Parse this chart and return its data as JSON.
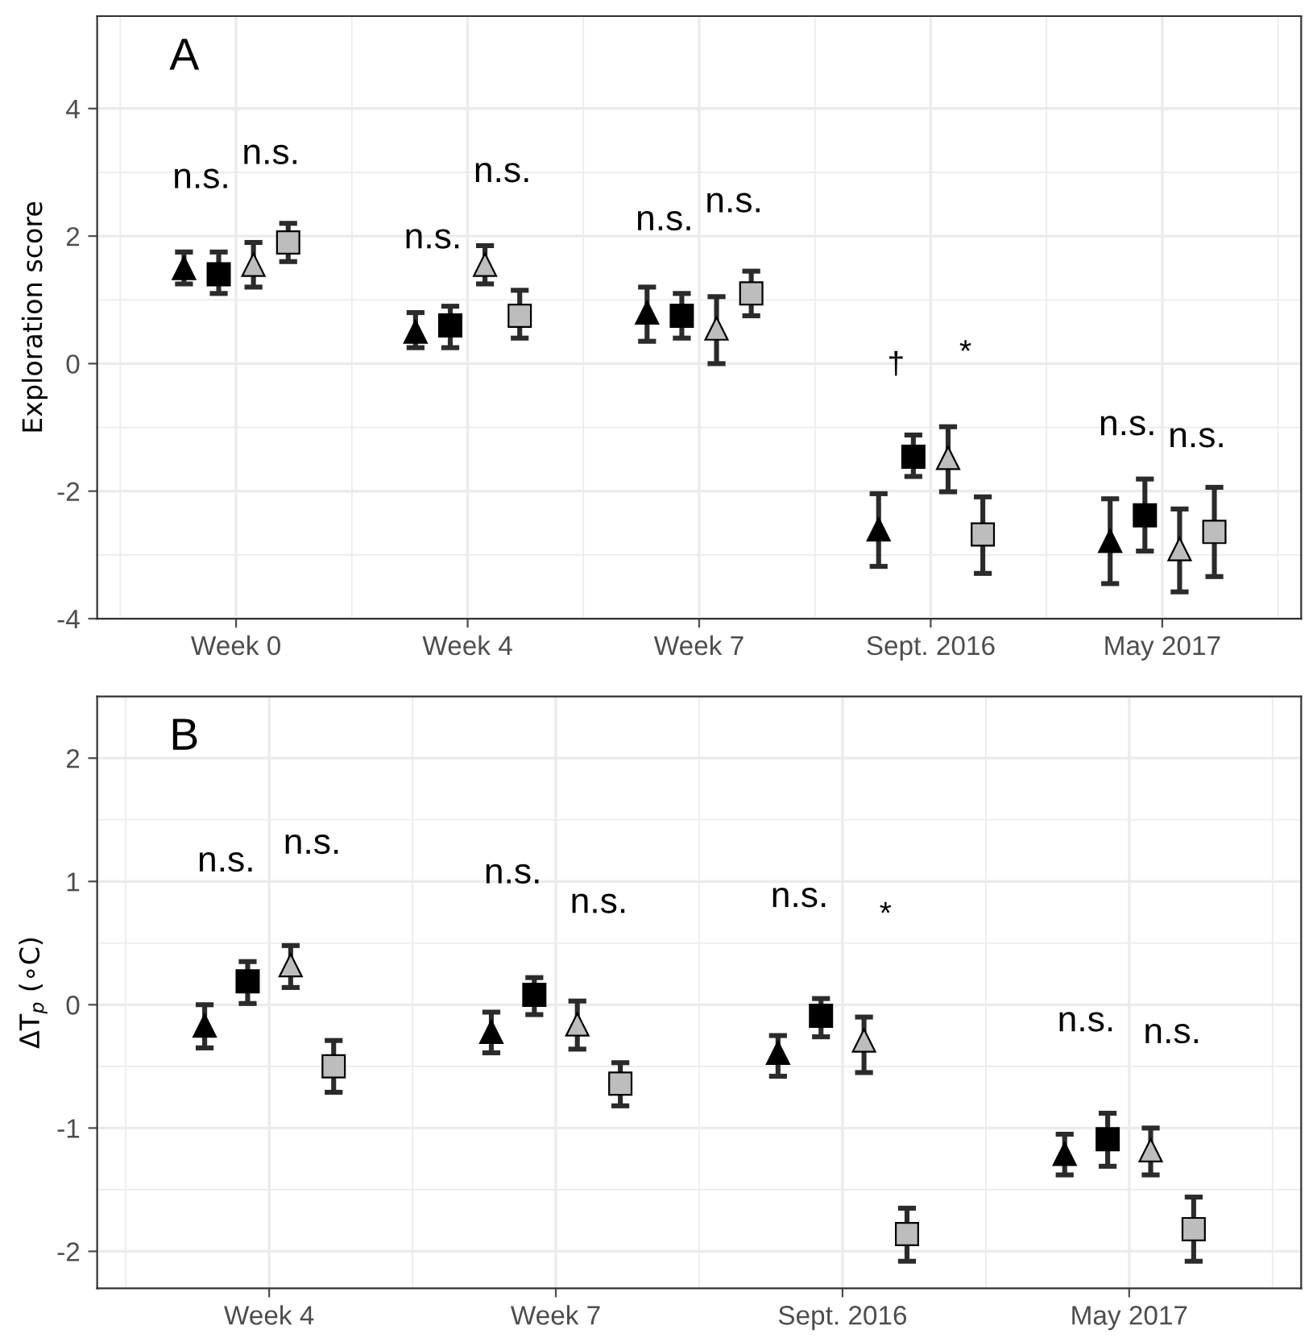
{
  "chart_data": [
    {
      "type": "scatter",
      "title": "A",
      "ylabel": "Exploration score",
      "categories": [
        "Week 0",
        "Week 4",
        "Week 7",
        "Sept. 2016",
        "May 2017"
      ],
      "ylim": [
        -4,
        5.45
      ],
      "yticks": [
        {
          "value": -4,
          "label": "-4"
        },
        {
          "value": -2,
          "label": "-2"
        },
        0,
        2,
        4
      ],
      "grid": true,
      "legend": false,
      "series": [
        {
          "color": "#000000",
          "marker": "triangle",
          "values": [
            1.5,
            0.5,
            0.8,
            -2.6,
            -2.78
          ],
          "errors": [
            [
              1.25,
              1.75
            ],
            [
              0.25,
              0.8
            ],
            [
              0.35,
              1.2
            ],
            [
              -3.18,
              -2.04
            ],
            [
              -3.45,
              -2.12
            ]
          ]
        },
        {
          "color": "#000000",
          "marker": "square",
          "values": [
            1.4,
            0.6,
            0.75,
            -1.46,
            -2.38
          ],
          "errors": [
            [
              1.1,
              1.75
            ],
            [
              0.25,
              0.9
            ],
            [
              0.4,
              1.1
            ],
            [
              -1.77,
              -1.12
            ],
            [
              -2.94,
              -1.81
            ]
          ]
        },
        {
          "color": "#bdbdbd",
          "marker": "triangle",
          "values": [
            1.55,
            1.55,
            0.55,
            -1.48,
            -2.91
          ],
          "errors": [
            [
              1.2,
              1.9
            ],
            [
              1.25,
              1.85
            ],
            [
              0,
              1.05
            ],
            [
              -2.01,
              -0.99
            ],
            [
              -3.58,
              -2.28
            ]
          ]
        },
        {
          "color": "#bdbdbd",
          "marker": "square",
          "values": [
            1.9,
            0.75,
            1.1,
            -2.68,
            -2.64
          ],
          "errors": [
            [
              1.6,
              2.2
            ],
            [
              0.4,
              1.15
            ],
            [
              0.75,
              1.45
            ],
            [
              -3.29,
              -2.09
            ],
            [
              -3.34,
              -1.94
            ]
          ]
        }
      ],
      "annotations": [
        "n.s.",
        "n.s.",
        "n.s.",
        "n.s.",
        "n.s.",
        "n.s.",
        "†",
        "*",
        "n.s.",
        "n.s."
      ]
    },
    {
      "type": "scatter",
      "title": "B",
      "ylabel": "ΔT$_{p}$ (∘C)",
      "categories": [
        "Week 4",
        "Week 7",
        "Sept. 2016",
        "May 2017"
      ],
      "ylim": [
        -2.3,
        2.5
      ],
      "yticks": [
        {
          "value": -2,
          "label": "-2"
        },
        {
          "value": -1,
          "label": "-1"
        },
        0,
        1,
        2
      ],
      "grid": true,
      "legend": false,
      "series": [
        {
          "color": "#000000",
          "marker": "triangle",
          "values": [
            -0.17,
            -0.22,
            -0.39,
            -1.21
          ],
          "errors": [
            [
              -0.35,
              0.0
            ],
            [
              -0.39,
              -0.06
            ],
            [
              -0.58,
              -0.25
            ],
            [
              -1.38,
              -1.05
            ]
          ]
        },
        {
          "color": "#000000",
          "marker": "square",
          "values": [
            0.19,
            0.08,
            -0.09,
            -1.09
          ],
          "errors": [
            [
              0.01,
              0.35
            ],
            [
              -0.08,
              0.22
            ],
            [
              -0.26,
              0.05
            ],
            [
              -1.31,
              -0.88
            ]
          ]
        },
        {
          "color": "#bdbdbd",
          "marker": "triangle",
          "values": [
            0.32,
            -0.16,
            -0.29,
            -1.18
          ],
          "errors": [
            [
              0.14,
              0.48
            ],
            [
              -0.36,
              0.03
            ],
            [
              -0.55,
              -0.1
            ],
            [
              -1.38,
              -1.0
            ]
          ]
        },
        {
          "color": "#bdbdbd",
          "marker": "square",
          "values": [
            -0.5,
            -0.64,
            -1.86,
            -1.82
          ],
          "errors": [
            [
              -0.71,
              -0.29
            ],
            [
              -0.82,
              -0.47
            ],
            [
              -2.08,
              -1.65
            ],
            [
              -2.08,
              -1.56
            ]
          ]
        }
      ],
      "annotations": [
        "n.s.",
        "n.s.",
        "n.s.",
        "n.s.",
        "n.s.",
        "*",
        "n.s.",
        "n.s."
      ]
    }
  ]
}
